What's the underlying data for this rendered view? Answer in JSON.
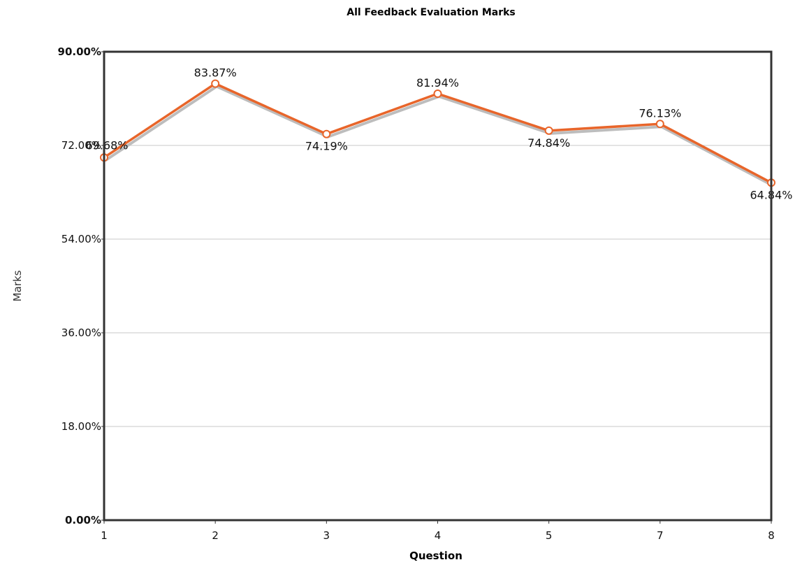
{
  "chart_data": {
    "type": "line",
    "title": "All Feedback Evaluation Marks",
    "xlabel": "Question",
    "ylabel": "Marks",
    "categories": [
      "1",
      "2",
      "3",
      "4",
      "5",
      "7",
      "8"
    ],
    "values": [
      69.68,
      83.87,
      74.19,
      81.94,
      74.84,
      76.13,
      64.84
    ],
    "data_labels": [
      "69.68%",
      "83.87%",
      "74.19%",
      "81.94%",
      "74.84%",
      "76.13%",
      "64.84%"
    ],
    "yticks": [
      0,
      18,
      36,
      54,
      72,
      90
    ],
    "ytick_labels": [
      "0.00%",
      "18.00%",
      "36.00%",
      "54.00%",
      "72.00%",
      "90.00%"
    ],
    "ylim": [
      0,
      90
    ],
    "grid": true,
    "legend": "none",
    "colors": {
      "line": "#e8652a",
      "shadow": "#bdbdbd",
      "grid": "#c8c8c8",
      "frame": "#333333",
      "marker_fill": "#ffffff"
    }
  }
}
